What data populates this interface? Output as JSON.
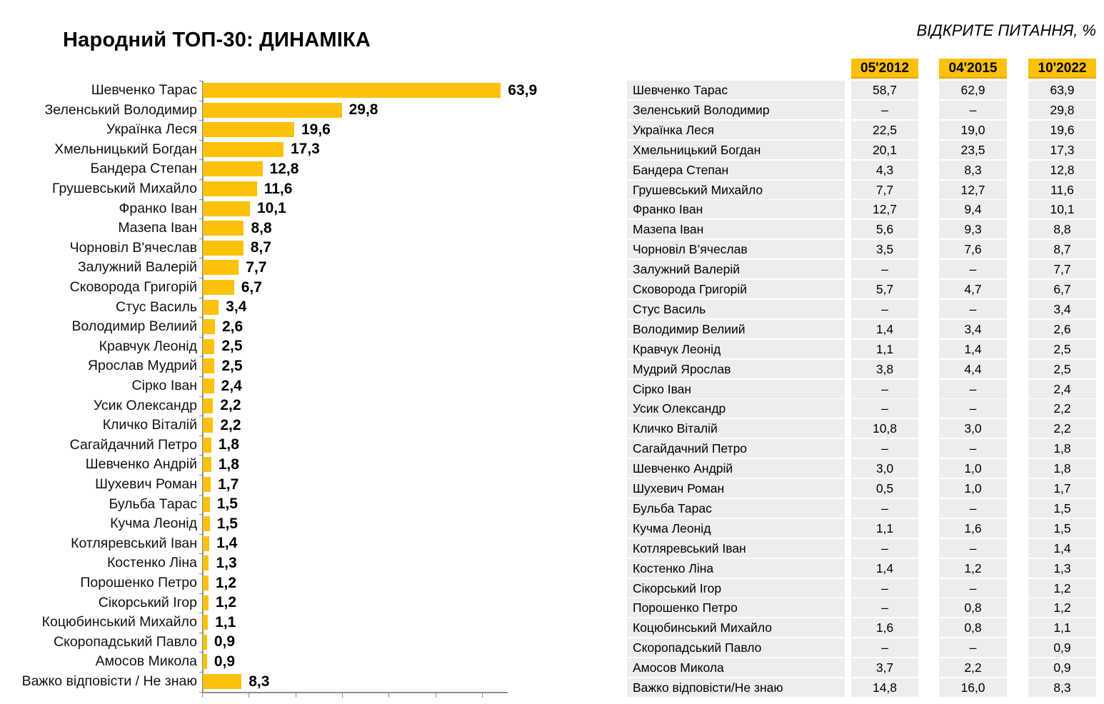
{
  "title": "Народний ТОП-30: ДИНАМІКА",
  "right_header": "ВІДКРИТЕ ПИТАННЯ, %",
  "columns": [
    "05'2012",
    "04'2015",
    "10'2022"
  ],
  "colors": {
    "bar": "#FCC108",
    "header_bg": "#FCC108",
    "header_border": "#E9A000",
    "row_bg": "#EDEDED",
    "axis": "#8C8C8C"
  },
  "chart_data": [
    {
      "type": "bar",
      "orientation": "horizontal",
      "title": "Народний ТОП-30: ДИНАМІКА",
      "xlabel": "",
      "ylabel": "",
      "xlim": [
        0,
        65
      ],
      "axis_ticks": [
        0,
        10,
        20,
        30,
        40,
        50,
        60
      ],
      "grid": false,
      "legend": false,
      "categories": [
        "Шевченко Тарас",
        "Зеленський Володимир",
        "Українка Леся",
        "Хмельницький Богдан",
        "Бандера Степан",
        "Грушевський Михайло",
        "Франко Іван",
        "Мазепа Іван",
        "Чорновіл В'ячеслав",
        "Залужний Валерій",
        "Сковорода Григорій",
        "Стус Василь",
        "Володимир Велиий",
        "Кравчук Леонід",
        "Ярослав Мудрий",
        "Сірко Іван",
        "Усик Олександр",
        "Кличко Віталій",
        "Сагайдачний Петро",
        "Шевченко Андрій",
        "Шухевич Роман",
        "Бульба Тарас",
        "Кучма Леонід",
        "Котляревський Іван",
        "Костенко Ліна",
        "Порошенко Петро",
        "Сікорський Ігор",
        "Коцюбинський Михайло",
        "Скоропадський Павло",
        "Амосов Микола",
        "Важко відповісти / Не знаю"
      ],
      "values": [
        63.9,
        29.8,
        19.6,
        17.3,
        12.8,
        11.6,
        10.1,
        8.8,
        8.7,
        7.7,
        6.7,
        3.4,
        2.6,
        2.5,
        2.5,
        2.4,
        2.2,
        2.2,
        1.8,
        1.8,
        1.7,
        1.5,
        1.5,
        1.4,
        1.3,
        1.2,
        1.2,
        1.1,
        0.9,
        0.9,
        8.3
      ]
    },
    {
      "type": "table",
      "title": "ВІДКРИТЕ ПИТАННЯ, %",
      "columns": [
        "05'2012",
        "04'2015",
        "10'2022"
      ],
      "rows": [
        {
          "name": "Шевченко Тарас",
          "v2012": "58,7",
          "v2015": "62,9",
          "v2022": "63,9"
        },
        {
          "name": "Зеленський Володимир",
          "v2012": "–",
          "v2015": "–",
          "v2022": "29,8"
        },
        {
          "name": "Українка Леся",
          "v2012": "22,5",
          "v2015": "19,0",
          "v2022": "19,6"
        },
        {
          "name": "Хмельницький Богдан",
          "v2012": "20,1",
          "v2015": "23,5",
          "v2022": "17,3"
        },
        {
          "name": "Бандера Степан",
          "v2012": "4,3",
          "v2015": "8,3",
          "v2022": "12,8"
        },
        {
          "name": "Грушевський Михайло",
          "v2012": "7,7",
          "v2015": "12,7",
          "v2022": "11,6"
        },
        {
          "name": "Франко Іван",
          "v2012": "12,7",
          "v2015": "9,4",
          "v2022": "10,1"
        },
        {
          "name": "Мазепа Іван",
          "v2012": "5,6",
          "v2015": "9,3",
          "v2022": "8,8"
        },
        {
          "name": "Чорновіл В’ячеслав",
          "v2012": "3,5",
          "v2015": "7,6",
          "v2022": "8,7"
        },
        {
          "name": "Залужний Валерій",
          "v2012": "–",
          "v2015": "–",
          "v2022": "7,7"
        },
        {
          "name": "Сковорода Григорій",
          "v2012": "5,7",
          "v2015": "4,7",
          "v2022": "6,7"
        },
        {
          "name": "Стус Василь",
          "v2012": "–",
          "v2015": "–",
          "v2022": "3,4"
        },
        {
          "name": "Володимир Велиий",
          "v2012": "1,4",
          "v2015": "3,4",
          "v2022": "2,6"
        },
        {
          "name": "Кравчук Леонід",
          "v2012": "1,1",
          "v2015": "1,4",
          "v2022": "2,5"
        },
        {
          "name": "Мудрий Ярослав",
          "v2012": "3,8",
          "v2015": "4,4",
          "v2022": "2,5"
        },
        {
          "name": "Сірко Іван",
          "v2012": "–",
          "v2015": "–",
          "v2022": "2,4"
        },
        {
          "name": "Усик Олександр",
          "v2012": "–",
          "v2015": "–",
          "v2022": "2,2"
        },
        {
          "name": "Кличко Віталій",
          "v2012": "10,8",
          "v2015": "3,0",
          "v2022": "2,2"
        },
        {
          "name": "Сагайдачний Петро",
          "v2012": "–",
          "v2015": "–",
          "v2022": "1,8"
        },
        {
          "name": "Шевченко Андрій",
          "v2012": "3,0",
          "v2015": "1,0",
          "v2022": "1,8"
        },
        {
          "name": "Шухевич Роман",
          "v2012": "0,5",
          "v2015": "1,0",
          "v2022": "1,7"
        },
        {
          "name": "Бульба Тарас",
          "v2012": "–",
          "v2015": "–",
          "v2022": "1,5"
        },
        {
          "name": "Кучма Леонід",
          "v2012": "1,1",
          "v2015": "1,6",
          "v2022": "1,5"
        },
        {
          "name": "Котляревський Іван",
          "v2012": "–",
          "v2015": "–",
          "v2022": "1,4"
        },
        {
          "name": "Костенко Ліна",
          "v2012": "1,4",
          "v2015": "1,2",
          "v2022": "1,3"
        },
        {
          "name": "Сікорський Ігор",
          "v2012": "–",
          "v2015": "–",
          "v2022": "1,2"
        },
        {
          "name": "Порошенко Петро",
          "v2012": "–",
          "v2015": "0,8",
          "v2022": "1,2"
        },
        {
          "name": "Коцюбинський Михайло",
          "v2012": "1,6",
          "v2015": "0,8",
          "v2022": "1,1"
        },
        {
          "name": "Скоропадський Павло",
          "v2012": "–",
          "v2015": "–",
          "v2022": "0,9"
        },
        {
          "name": "Амосов Микола",
          "v2012": "3,7",
          "v2015": "2,2",
          "v2022": "0,9"
        },
        {
          "name": "Важко відповісти/Не знаю",
          "v2012": "14,8",
          "v2015": "16,0",
          "v2022": "8,3"
        }
      ]
    }
  ]
}
